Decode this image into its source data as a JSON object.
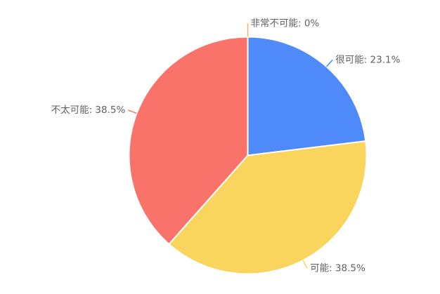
{
  "chart_data": {
    "type": "pie",
    "title": "",
    "legend": "none",
    "background": "#ffffff",
    "direction": "clockwise",
    "start_angle": "top",
    "unit": "%",
    "categories": [
      "非常不可能",
      "很可能",
      "可能",
      "不太可能"
    ],
    "series": [
      {
        "name": "非常不可能",
        "value": 0,
        "label": "非常不可能: 0%",
        "color": "#FBAD72"
      },
      {
        "name": "很可能",
        "value": 23.1,
        "label": "很可能: 23.1%",
        "color": "#4E8AF9"
      },
      {
        "name": "可能",
        "value": 38.5,
        "label": "可能: 38.5%",
        "color": "#FAD55E"
      },
      {
        "name": "不太可能",
        "value": 38.5,
        "label": "不太可能: 38.5%",
        "color": "#F9736B"
      }
    ],
    "label_color": "#606060",
    "slice_border_color": "#ffffff",
    "label_lines": true
  }
}
